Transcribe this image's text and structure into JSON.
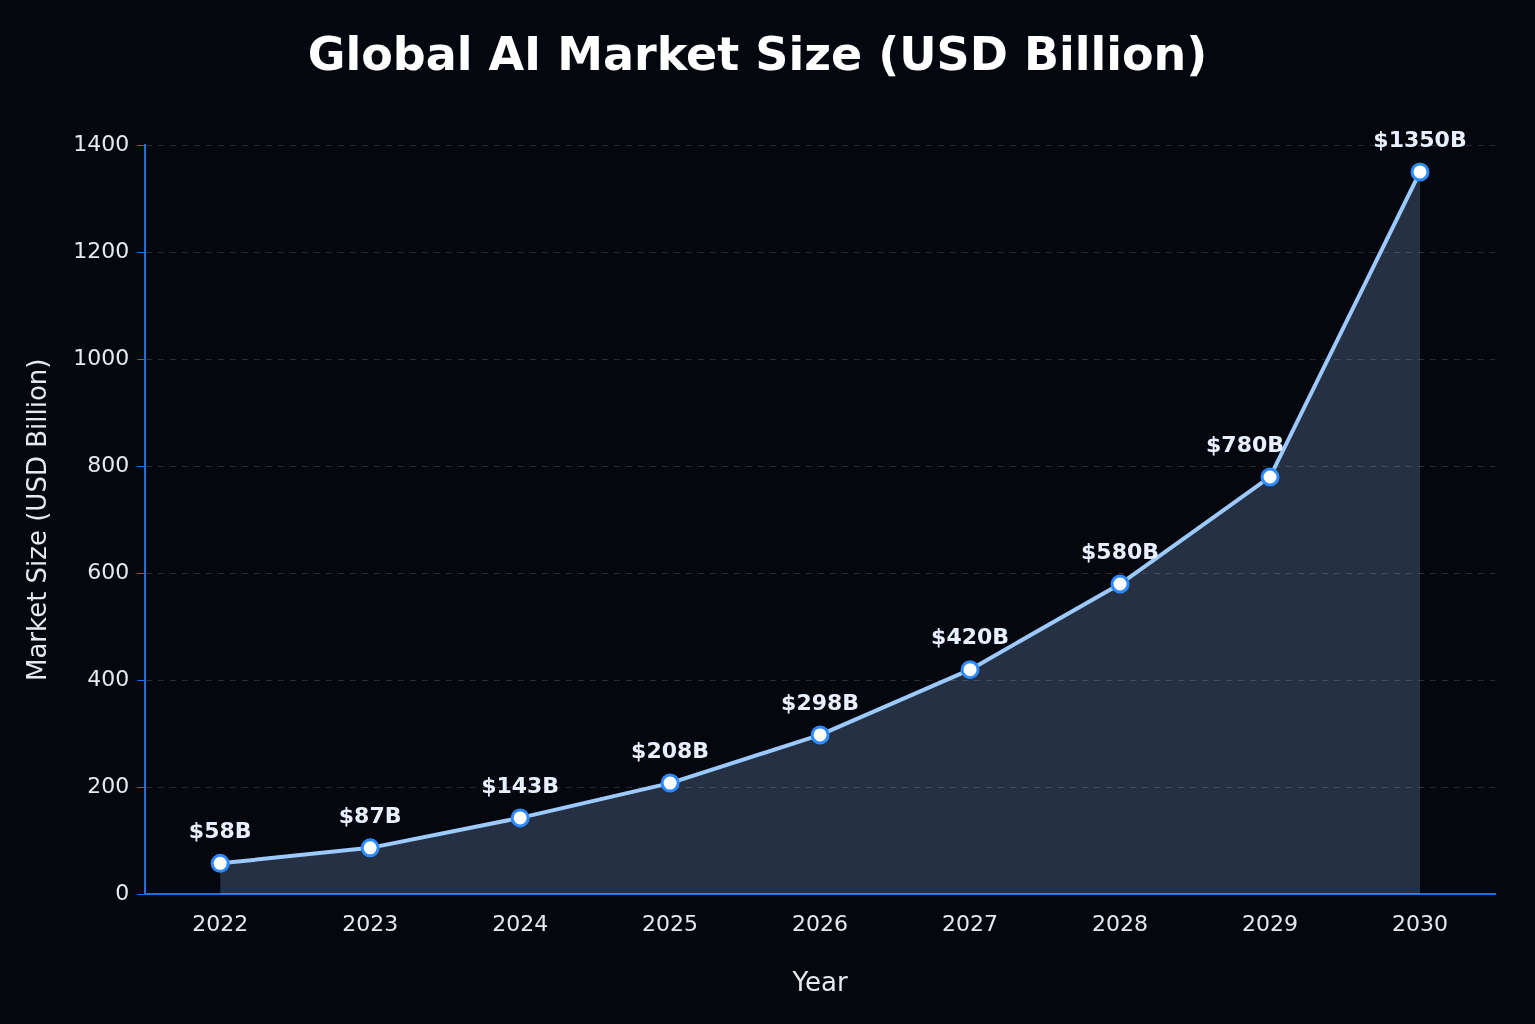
{
  "chart_data": {
    "type": "area",
    "title": "Global AI Market Size (USD Billion)",
    "xlabel": "Year",
    "ylabel": "Market Size (USD Billion)",
    "categories": [
      "2022",
      "2023",
      "2024",
      "2025",
      "2026",
      "2027",
      "2028",
      "2029",
      "2030"
    ],
    "series": [
      {
        "color": "#9ccaff",
        "values": [
          58,
          87,
          143,
          208,
          298,
          420,
          580,
          780,
          1350
        ],
        "value_labels": [
          "$58B",
          "$87B",
          "$143B",
          "$208B",
          "$298B",
          "$420B",
          "$580B",
          "$780B",
          "$1350B"
        ]
      }
    ],
    "ylim": [
      0,
      1400
    ],
    "yticks": [
      0,
      200,
      400,
      600,
      800,
      1000,
      1200,
      1400
    ],
    "grid": "y",
    "legend": false,
    "marker": "circle",
    "line_style": "solid"
  }
}
